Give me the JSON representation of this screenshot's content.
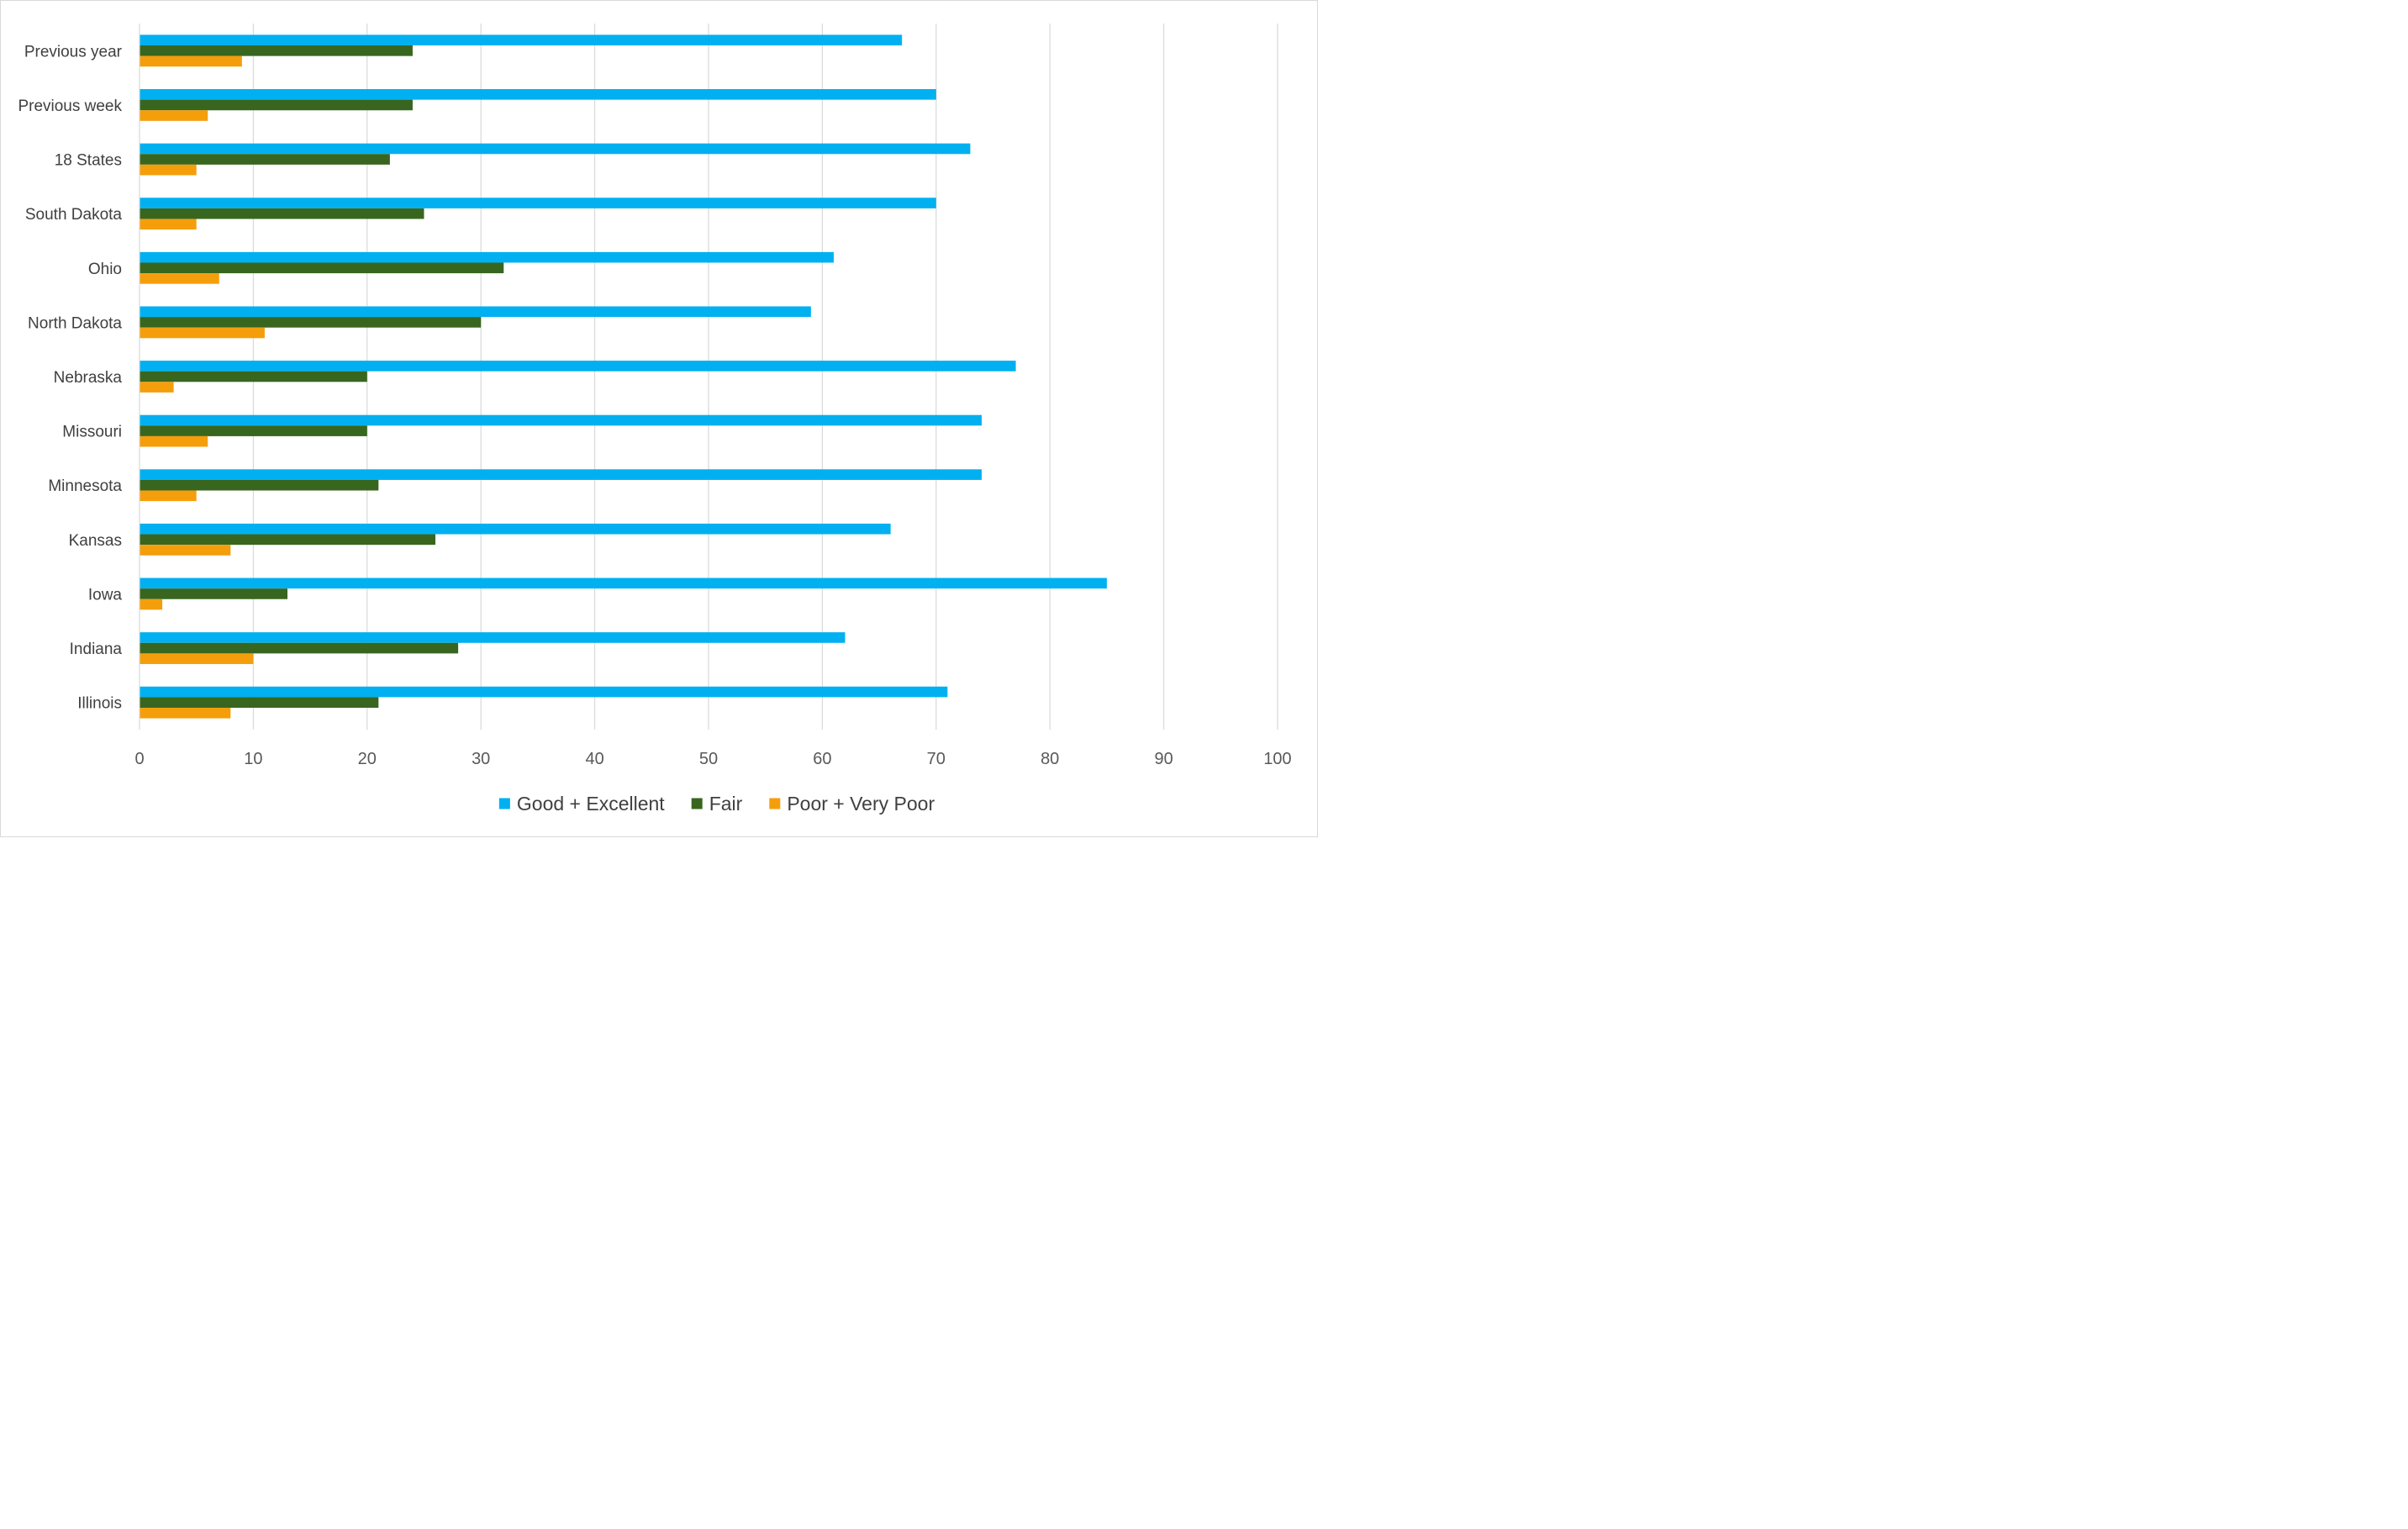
{
  "chart_data": {
    "type": "bar",
    "orientation": "horizontal",
    "title": "",
    "xlabel": "",
    "ylabel": "",
    "xlim": [
      0,
      100
    ],
    "x_ticks": [
      0,
      10,
      20,
      30,
      40,
      50,
      60,
      70,
      80,
      90,
      100
    ],
    "grid": "vertical",
    "legend_position": "bottom",
    "categories": [
      "Previous year",
      "Previous week",
      "18 States",
      "South Dakota",
      "Ohio",
      "North Dakota",
      "Nebraska",
      "Missouri",
      "Minnesota",
      "Kansas",
      "Iowa",
      "Indiana",
      "Illinois"
    ],
    "series": [
      {
        "name": "Good + Excellent",
        "color": "#00b0f0",
        "values": [
          67,
          70,
          73,
          70,
          61,
          59,
          77,
          74,
          74,
          66,
          85,
          62,
          71
        ]
      },
      {
        "name": "Fair",
        "color": "#38661f",
        "values": [
          24,
          24,
          22,
          25,
          32,
          30,
          20,
          20,
          21,
          26,
          13,
          28,
          21
        ]
      },
      {
        "name": "Poor + Very Poor",
        "color": "#f59e0b",
        "values": [
          9,
          6,
          5,
          5,
          7,
          11,
          3,
          6,
          5,
          8,
          2,
          10,
          8
        ]
      }
    ]
  }
}
